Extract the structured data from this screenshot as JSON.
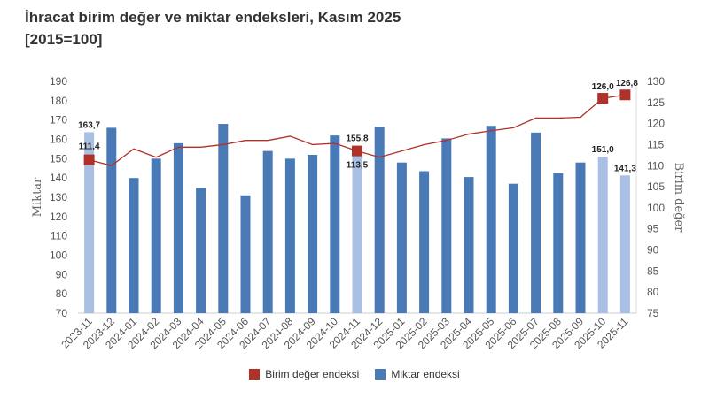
{
  "title": "İhracat birim değer ve miktar endeksleri, Kasım 2025",
  "subtitle": "[2015=100]",
  "chart_data": {
    "type": "bar+line",
    "categories": [
      "2023-11",
      "2023-12",
      "2024-01",
      "2024-02",
      "2024-03",
      "2024-04",
      "2024-05",
      "2024-06",
      "2024-07",
      "2024-08",
      "2024-09",
      "2024-10",
      "2024-11",
      "2024-12",
      "2025-01",
      "2025-02",
      "2025-03",
      "2025-04",
      "2025-05",
      "2025-06",
      "2025-07",
      "2025-08",
      "2025-09",
      "2025-10",
      "2025-11"
    ],
    "series": [
      {
        "name": "Miktar endeksi",
        "type": "bar",
        "axis": "left",
        "color": "#4a7ab5",
        "highlight_color": "#a9bfe3",
        "values": [
          163.7,
          166,
          140,
          150,
          158,
          135,
          168,
          131,
          154,
          150,
          152,
          162,
          155.8,
          166.5,
          148,
          143.5,
          160.5,
          140.5,
          167,
          137,
          163.5,
          142.5,
          148,
          151.0,
          141.3
        ],
        "highlighted": [
          0,
          12,
          23,
          24
        ]
      },
      {
        "name": "Birim değer endeksi",
        "type": "line",
        "axis": "right",
        "color": "#b0302a",
        "values": [
          111.4,
          110,
          114,
          112,
          114.4,
          114.4,
          115,
          116,
          116,
          117,
          115,
          115.3,
          113.5,
          112,
          113.5,
          115,
          116,
          117.5,
          118.3,
          119,
          121.3,
          121.3,
          121.5,
          126.0,
          126.8
        ],
        "markers": [
          0,
          12,
          23,
          24
        ]
      }
    ],
    "data_labels": {
      "bar": {
        "0": "163,7",
        "12": "155,8",
        "23": "151,0",
        "24": "141,3"
      },
      "line": {
        "0": "111,4",
        "12": "113,5",
        "23": "126,0",
        "24": "126,8"
      }
    },
    "ylabel_left": "Miktar",
    "ylabel_right": "Birim değer",
    "ylim_left": [
      70,
      190
    ],
    "yticks_left": [
      70,
      80,
      90,
      100,
      110,
      120,
      130,
      140,
      150,
      160,
      170,
      180,
      190
    ],
    "ylim_right": [
      75,
      130
    ],
    "yticks_right": [
      75,
      80,
      85,
      90,
      95,
      100,
      105,
      110,
      115,
      120,
      125,
      130
    ],
    "legend": "bottom",
    "grid": false
  }
}
